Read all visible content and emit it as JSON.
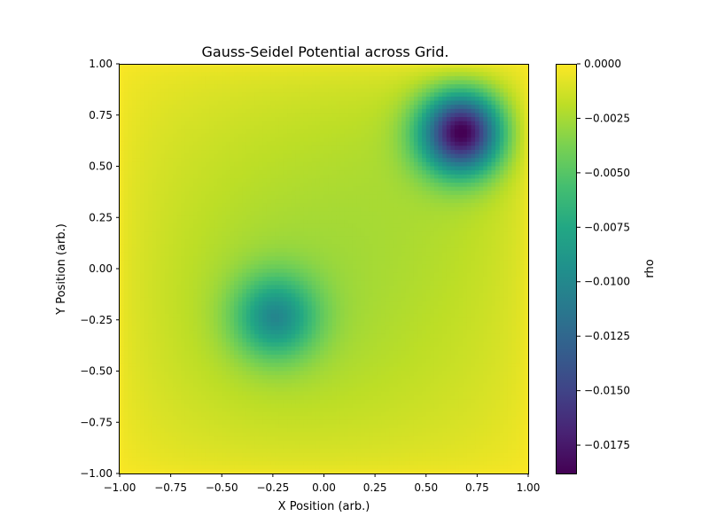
{
  "chart_data": {
    "type": "heatmap",
    "title": "Gauss-Seidel Potential across Grid.",
    "xlabel": "X Position (arb.)",
    "ylabel": "Y Position (arb.)",
    "xlim": [
      -1.0,
      1.0
    ],
    "ylim": [
      -1.0,
      1.0
    ],
    "x_ticks": [
      -1.0,
      -0.75,
      -0.5,
      -0.25,
      0.0,
      0.25,
      0.5,
      0.75,
      1.0
    ],
    "x_tick_labels": [
      "−1.00",
      "−0.75",
      "−0.50",
      "−0.25",
      "0.00",
      "0.25",
      "0.50",
      "0.75",
      "1.00"
    ],
    "y_ticks": [
      -1.0,
      -0.75,
      -0.5,
      -0.25,
      0.0,
      0.25,
      0.5,
      0.75,
      1.0
    ],
    "y_tick_labels": [
      "−1.00",
      "−0.75",
      "−0.50",
      "−0.25",
      "0.00",
      "0.25",
      "0.50",
      "0.75",
      "1.00"
    ],
    "colormap": "viridis",
    "grid": false,
    "colorbar": {
      "label": "rho",
      "vmin": -0.0188,
      "vmax": 0.0,
      "ticks": [
        0.0,
        -0.0025,
        -0.005,
        -0.0075,
        -0.01,
        -0.0125,
        -0.015,
        -0.0175
      ],
      "tick_labels": [
        "0.0000",
        "−0.0025",
        "−0.0050",
        "−0.0075",
        "−0.0100",
        "−0.0125",
        "−0.0150",
        "−0.0175"
      ]
    },
    "wells": [
      {
        "x": 0.69,
        "y": 0.68,
        "min_value": -0.0188
      },
      {
        "x": -0.24,
        "y": -0.24,
        "min_value": -0.0103
      }
    ],
    "boundary_value": 0.0,
    "grid_size": 100
  }
}
